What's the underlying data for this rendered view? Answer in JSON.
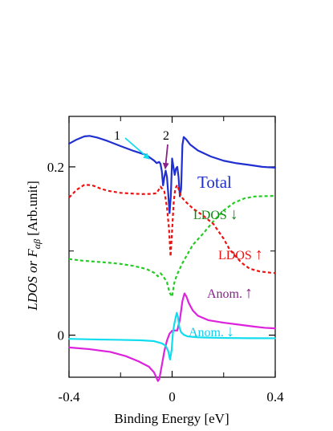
{
  "chart_data": {
    "type": "line",
    "xlabel": "Binding Energy [eV]",
    "ylabel": "LDOS or Fαβ [Arb.unit]",
    "ylabel_parts": {
      "a": "LDOS or ",
      "b": "F",
      "c": "αβ",
      "d": " [Arb.unit]"
    },
    "xlim": [
      -0.4,
      0.4
    ],
    "ylim": [
      -0.05,
      0.26
    ],
    "x_ticks": [
      {
        "value": -0.4,
        "label": "-0.4"
      },
      {
        "value": 0,
        "label": "0"
      },
      {
        "value": 0.4,
        "label": "0.4"
      }
    ],
    "x_minor_ticks": [
      -0.2,
      0.2
    ],
    "y_ticks": [
      {
        "value": 0,
        "label": "0"
      },
      {
        "value": 0.2,
        "label": "0.2"
      }
    ],
    "y_minor_ticks": [
      0.1
    ],
    "grid": false,
    "series": [
      {
        "name": "Total",
        "color": "#1f2fd0",
        "style": "solid",
        "points": [
          [
            -0.4,
            0.2275
          ],
          [
            -0.37,
            0.2325
          ],
          [
            -0.34,
            0.2363
          ],
          [
            -0.32,
            0.2368
          ],
          [
            -0.29,
            0.2348
          ],
          [
            -0.25,
            0.2307
          ],
          [
            -0.2,
            0.2247
          ],
          [
            -0.15,
            0.219
          ],
          [
            -0.1,
            0.214
          ],
          [
            -0.07,
            0.2075
          ],
          [
            -0.06,
            0.2045
          ],
          [
            -0.05,
            0.2058
          ],
          [
            -0.045,
            0.2035
          ],
          [
            -0.04,
            0.195
          ],
          [
            -0.035,
            0.178
          ],
          [
            -0.03,
            0.188
          ],
          [
            -0.025,
            0.1955
          ],
          [
            -0.02,
            0.188
          ],
          [
            -0.015,
            0.168
          ],
          [
            -0.01,
            0.145
          ],
          [
            -0.005,
            0.165
          ],
          [
            0,
            0.21
          ],
          [
            0.005,
            0.2
          ],
          [
            0.01,
            0.1905
          ],
          [
            0.015,
            0.198
          ],
          [
            0.02,
            0.2
          ],
          [
            0.025,
            0.188
          ],
          [
            0.03,
            0.165
          ],
          [
            0.035,
            0.174
          ],
          [
            0.04,
            0.226
          ],
          [
            0.045,
            0.2355
          ],
          [
            0.055,
            0.2325
          ],
          [
            0.07,
            0.2265
          ],
          [
            0.1,
            0.2195
          ],
          [
            0.15,
            0.2123
          ],
          [
            0.2,
            0.2073
          ],
          [
            0.25,
            0.2043
          ],
          [
            0.3,
            0.2023
          ],
          [
            0.35,
            0.2
          ],
          [
            0.4,
            0.199
          ]
        ]
      },
      {
        "name": "LDOS↓",
        "color": "#22cc22",
        "style": "dashed",
        "points": [
          [
            -0.4,
            0.0905
          ],
          [
            -0.35,
            0.0886
          ],
          [
            -0.3,
            0.0874
          ],
          [
            -0.25,
            0.0862
          ],
          [
            -0.2,
            0.0847
          ],
          [
            -0.15,
            0.0823
          ],
          [
            -0.1,
            0.0787
          ],
          [
            -0.07,
            0.0742
          ],
          [
            -0.055,
            0.0699
          ],
          [
            -0.045,
            0.0735
          ],
          [
            -0.035,
            0.0703
          ],
          [
            -0.02,
            0.0628
          ],
          [
            -0.01,
            0.0505
          ],
          [
            0,
            0.0457
          ],
          [
            0.005,
            0.0562
          ],
          [
            0.01,
            0.0642
          ],
          [
            0.02,
            0.0725
          ],
          [
            0.04,
            0.0856
          ],
          [
            0.08,
            0.1072
          ],
          [
            0.12,
            0.1206
          ],
          [
            0.16,
            0.1353
          ],
          [
            0.2,
            0.1482
          ],
          [
            0.24,
            0.1573
          ],
          [
            0.28,
            0.1625
          ],
          [
            0.32,
            0.1648
          ],
          [
            0.36,
            0.1652
          ],
          [
            0.4,
            0.1655
          ]
        ]
      },
      {
        "name": "LDOS↑",
        "color": "#ee1111",
        "style": "dashed",
        "points": [
          [
            -0.4,
            0.1636
          ],
          [
            -0.37,
            0.1728
          ],
          [
            -0.34,
            0.1788
          ],
          [
            -0.31,
            0.1781
          ],
          [
            -0.28,
            0.1745
          ],
          [
            -0.25,
            0.1716
          ],
          [
            -0.2,
            0.1691
          ],
          [
            -0.15,
            0.1682
          ],
          [
            -0.12,
            0.1677
          ],
          [
            -0.09,
            0.1678
          ],
          [
            -0.06,
            0.1686
          ],
          [
            -0.045,
            0.1765
          ],
          [
            -0.03,
            0.1707
          ],
          [
            -0.02,
            0.152
          ],
          [
            -0.012,
            0.126
          ],
          [
            -0.006,
            0.0935
          ],
          [
            0,
            0.125
          ],
          [
            0.006,
            0.157
          ],
          [
            0.012,
            0.174
          ],
          [
            0.02,
            0.1784
          ],
          [
            0.035,
            0.1648
          ],
          [
            0.05,
            0.1593
          ],
          [
            0.08,
            0.1507
          ],
          [
            0.12,
            0.1421
          ],
          [
            0.16,
            0.1322
          ],
          [
            0.2,
            0.1146
          ],
          [
            0.22,
            0.1035
          ],
          [
            0.24,
            0.0956
          ],
          [
            0.27,
            0.0859
          ],
          [
            0.3,
            0.0791
          ],
          [
            0.34,
            0.0757
          ],
          [
            0.38,
            0.0743
          ],
          [
            0.4,
            0.0738
          ]
        ]
      },
      {
        "name": "Anom.↑",
        "color": "#dd22dd",
        "style": "solid",
        "points": [
          [
            -0.4,
            -0.0146
          ],
          [
            -0.32,
            -0.0167
          ],
          [
            -0.24,
            -0.0199
          ],
          [
            -0.18,
            -0.0249
          ],
          [
            -0.13,
            -0.0312
          ],
          [
            -0.09,
            -0.0375
          ],
          [
            -0.07,
            -0.0443
          ],
          [
            -0.055,
            -0.0545
          ],
          [
            -0.05,
            -0.0525
          ],
          [
            -0.04,
            -0.036
          ],
          [
            -0.03,
            -0.0188
          ],
          [
            -0.02,
            -0.0065
          ],
          [
            -0.01,
            0.0018
          ],
          [
            0,
            0.0052
          ],
          [
            0.01,
            0.0056
          ],
          [
            0.02,
            0.0055
          ],
          [
            0.03,
            0.0182
          ],
          [
            0.04,
            0.0406
          ],
          [
            0.048,
            0.0496
          ],
          [
            0.055,
            0.0462
          ],
          [
            0.065,
            0.038
          ],
          [
            0.08,
            0.0294
          ],
          [
            0.1,
            0.0231
          ],
          [
            0.14,
            0.0178
          ],
          [
            0.2,
            0.0148
          ],
          [
            0.26,
            0.0125
          ],
          [
            0.32,
            0.0101
          ],
          [
            0.36,
            0.0087
          ],
          [
            0.4,
            0.0081
          ]
        ]
      },
      {
        "name": "Anom.↓",
        "color": "#11ddee",
        "style": "solid",
        "points": [
          [
            -0.4,
            -0.0044
          ],
          [
            -0.3,
            -0.0051
          ],
          [
            -0.2,
            -0.0056
          ],
          [
            -0.12,
            -0.0061
          ],
          [
            -0.07,
            -0.0071
          ],
          [
            -0.04,
            -0.0098
          ],
          [
            -0.025,
            -0.0125
          ],
          [
            -0.015,
            -0.019
          ],
          [
            -0.008,
            -0.029
          ],
          [
            -0.002,
            -0.018
          ],
          [
            0.003,
            0.0025
          ],
          [
            0.008,
            0.0125
          ],
          [
            0.013,
            0.02
          ],
          [
            0.018,
            0.0265
          ],
          [
            0.022,
            0.0225
          ],
          [
            0.028,
            0.0095
          ],
          [
            0.035,
            0.0033
          ],
          [
            0.045,
            0.0005
          ],
          [
            0.06,
            -0.0015
          ],
          [
            0.1,
            -0.0026
          ],
          [
            0.2,
            -0.0033
          ],
          [
            0.3,
            -0.0036
          ],
          [
            0.4,
            -0.0037
          ]
        ]
      }
    ],
    "annotations": {
      "total": {
        "text": "Total",
        "color": "#1f2fd0"
      },
      "ldos_down": {
        "text": "LDOS",
        "arrow": "↓",
        "color": "#118811"
      },
      "ldos_up": {
        "text": "LDOS",
        "arrow": "↑",
        "color": "#ee1111"
      },
      "anom_up": {
        "text": "Anom.",
        "arrow": "↑",
        "color": "#882288"
      },
      "anom_down": {
        "text": "Anom.",
        "arrow": "↓",
        "color": "#11ccee"
      },
      "marker_1": {
        "text": "1",
        "color": "#11ddee",
        "target": [
          -0.07,
          0.2075
        ]
      },
      "marker_2": {
        "text": "2",
        "color": "#882288",
        "target": [
          -0.01,
          0.2045
        ]
      }
    }
  }
}
